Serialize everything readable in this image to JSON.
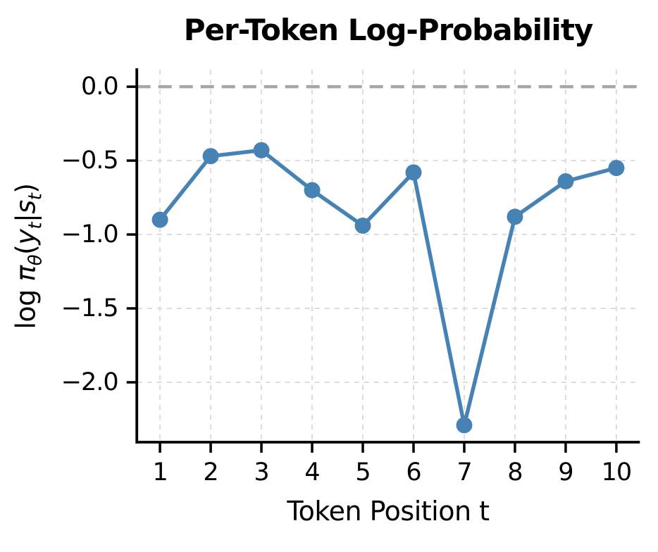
{
  "title": "Per-Token Log-Probability",
  "ylabel_parts": {
    "log": "log ",
    "pi": "π",
    "theta": "θ",
    "open": "(",
    "y": "y",
    "t1": "t",
    "bar": "|",
    "s": "s",
    "t2": "t",
    "close": ")"
  },
  "colors": {
    "line": "#4682b4",
    "marker": "#4682b4",
    "zero_line": "#a6a6a6",
    "grid": "#dcdcdc",
    "spine": "#000000",
    "text": "#000000"
  },
  "chart_data": {
    "type": "line",
    "title": "Per-Token Log-Probability",
    "xlabel": "Token Position t",
    "ylabel": "log π_θ(y_t|s_t)",
    "x": [
      1,
      2,
      3,
      4,
      5,
      6,
      7,
      8,
      9,
      10
    ],
    "series": [
      {
        "name": "per-token log-probability",
        "values": [
          -0.9,
          -0.47,
          -0.43,
          -0.7,
          -0.94,
          -0.58,
          -2.29,
          -0.88,
          -0.64,
          -0.55
        ]
      }
    ],
    "x_tick_labels": [
      "1",
      "2",
      "3",
      "4",
      "5",
      "6",
      "7",
      "8",
      "9",
      "10"
    ],
    "y_ticks": [
      0.0,
      -0.5,
      -1.0,
      -1.5,
      -2.0
    ],
    "y_tick_labels": [
      "0.0",
      "−0.5",
      "−1.0",
      "−1.5",
      "−2.0"
    ],
    "xlim": [
      0.55,
      10.45
    ],
    "ylim": [
      -2.405,
      0.115
    ],
    "zero_line": 0.0,
    "grid": true,
    "grid_style": "dashed",
    "legend": false,
    "marker": "o",
    "line_color": "#4682b4"
  }
}
